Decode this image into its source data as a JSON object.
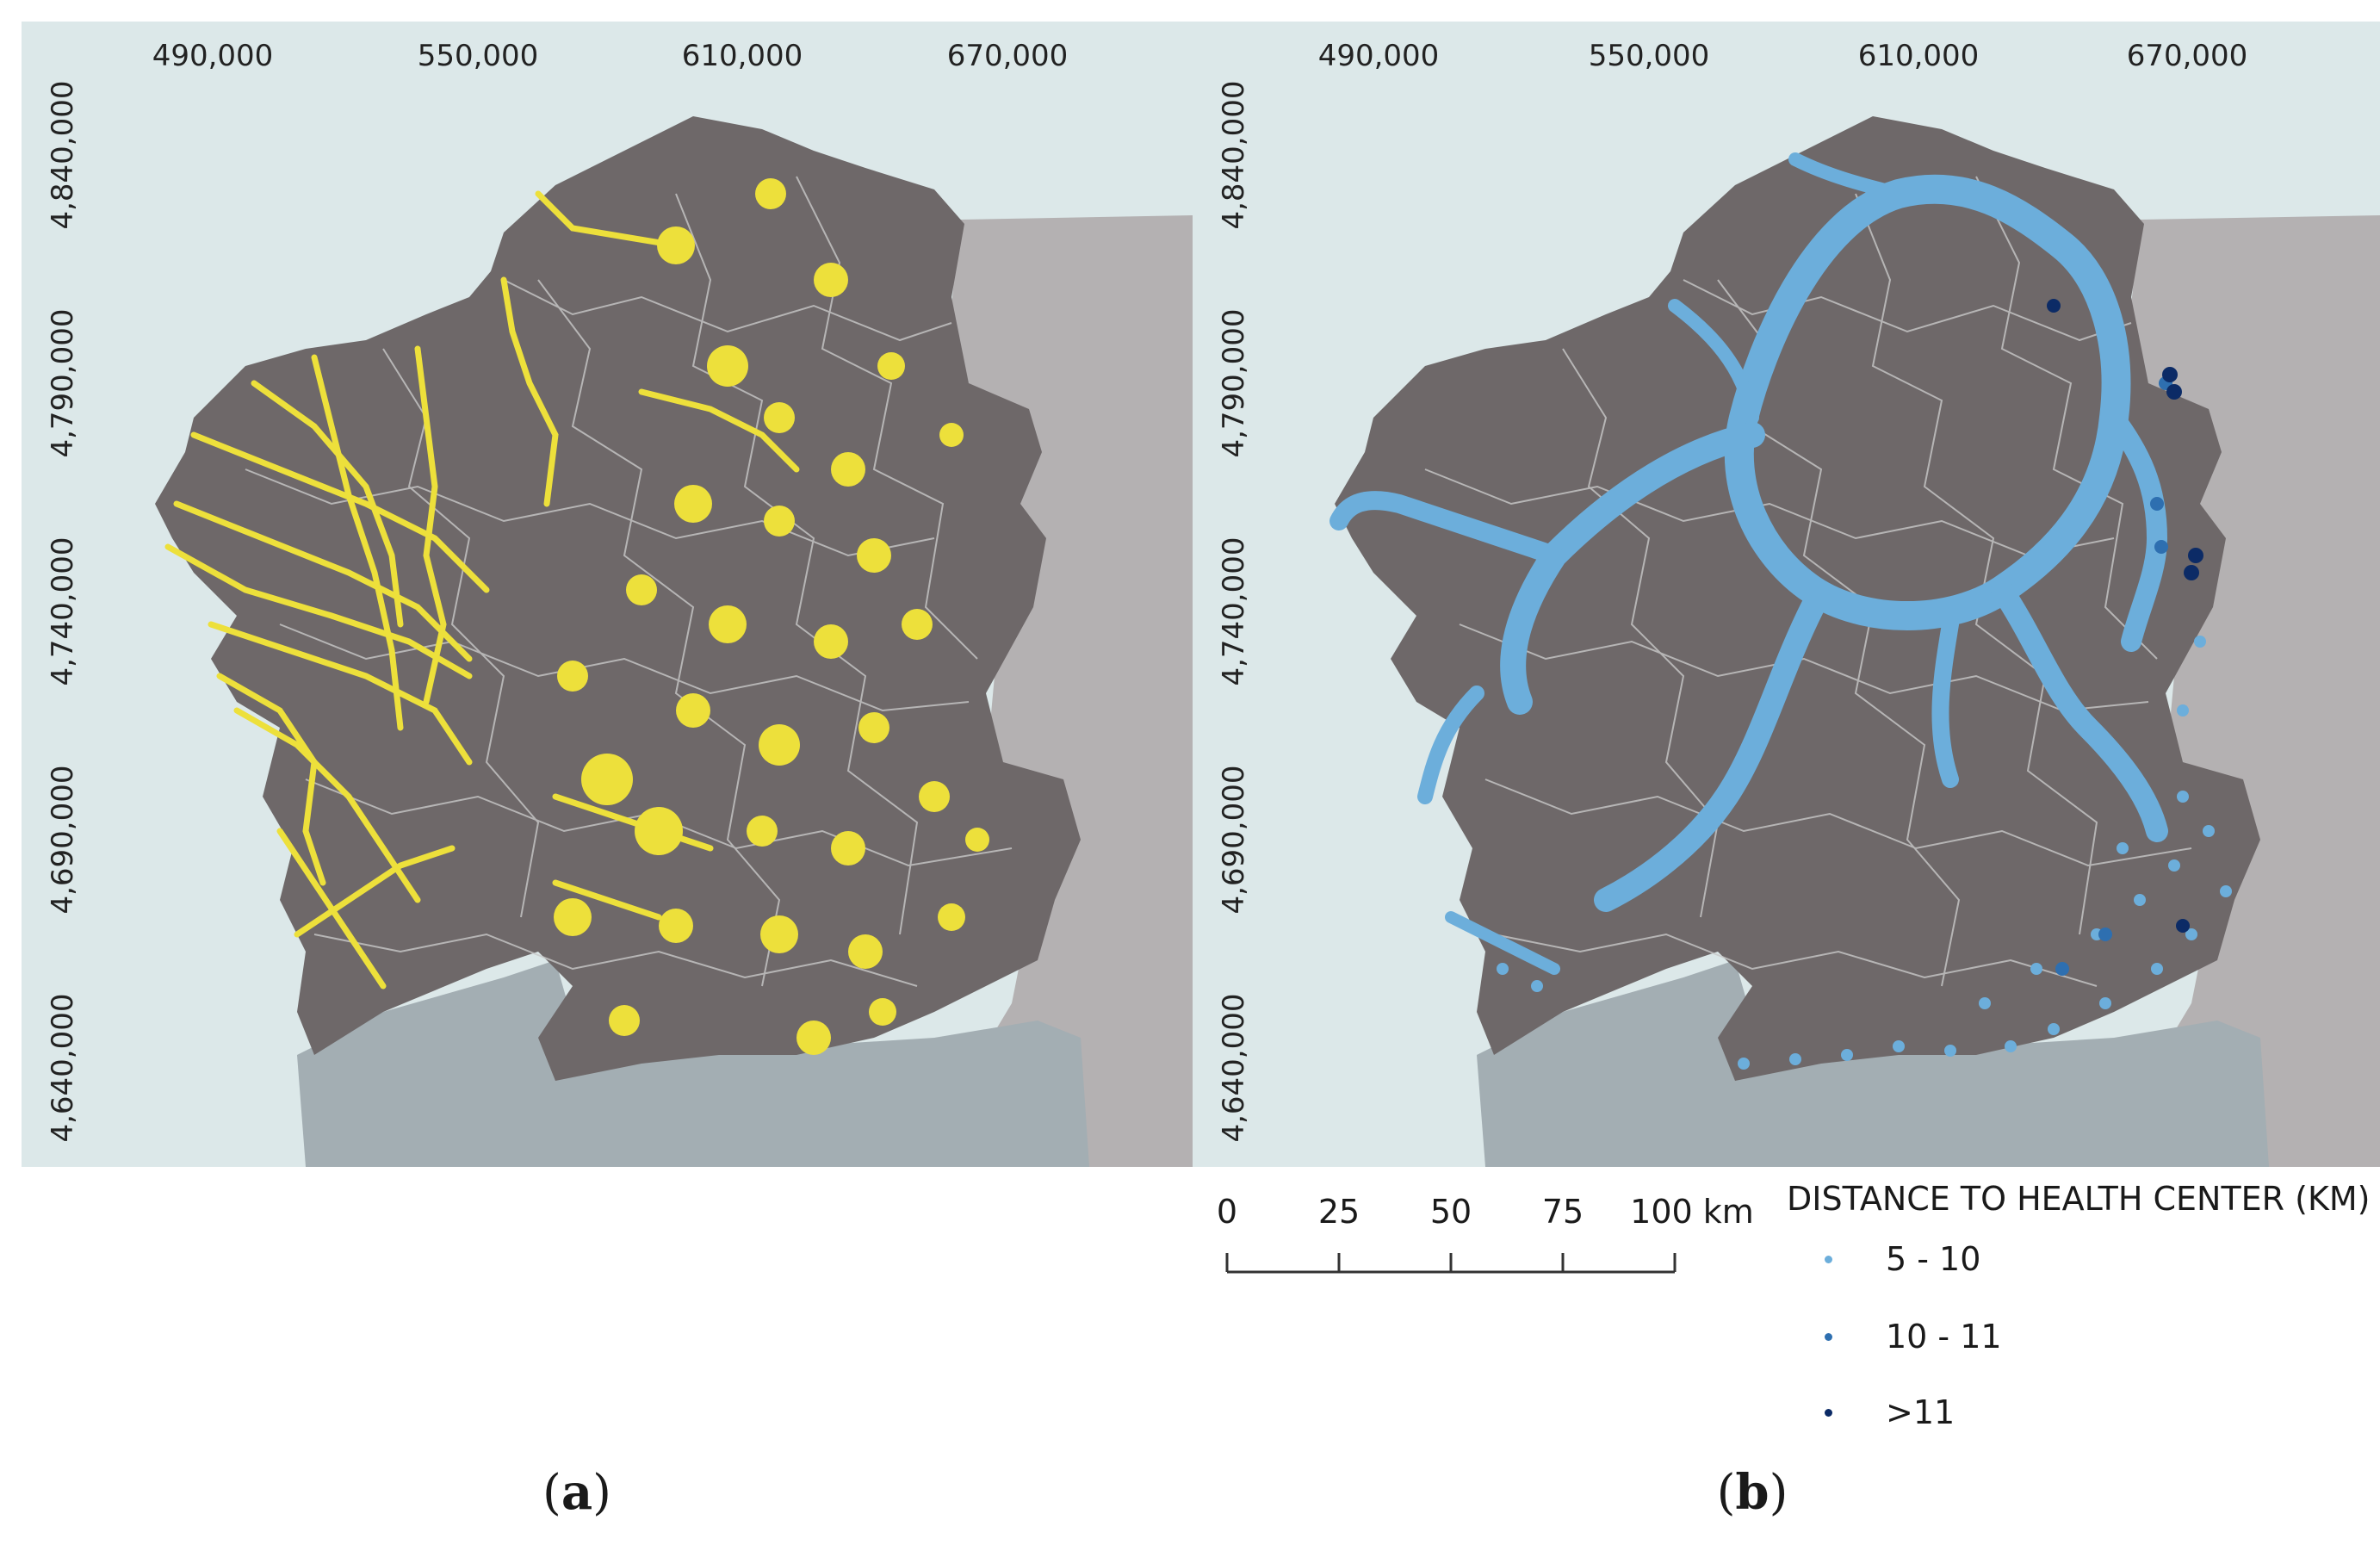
{
  "axes": {
    "x_ticks": [
      "490,000",
      "550,000",
      "610,000",
      "670,000"
    ],
    "y_ticks": [
      "4,840,000",
      "4,790,000",
      "4,740,000",
      "4,690,000",
      "4,640,000"
    ]
  },
  "panels": [
    {
      "caption_open": "(",
      "caption_letter": "a",
      "caption_close": ")",
      "layer": "road network",
      "layer_color": "#ede03b"
    },
    {
      "caption_open": "(",
      "caption_letter": "b",
      "caption_close": ")",
      "layer": "distance points",
      "layer_color": "#6caedb"
    }
  ],
  "scale_bar": {
    "labels": [
      "0",
      "25",
      "50",
      "75",
      "100 km"
    ]
  },
  "legend": {
    "title": "DISTANCE TO HEALTH CENTER (KM)",
    "items": [
      {
        "label": "5 - 10",
        "color": "#6caedb"
      },
      {
        "label": "10 - 11",
        "color": "#2e6fb0"
      },
      {
        "label": ">11",
        "color": "#0c2b66"
      }
    ]
  },
  "colors": {
    "sea": "#dce8e9",
    "land": "#6e6869",
    "neighbor_land": "#b4b1b2",
    "portugal_sea": "#a3aeb3",
    "boundaries": "#c9c9c9"
  }
}
